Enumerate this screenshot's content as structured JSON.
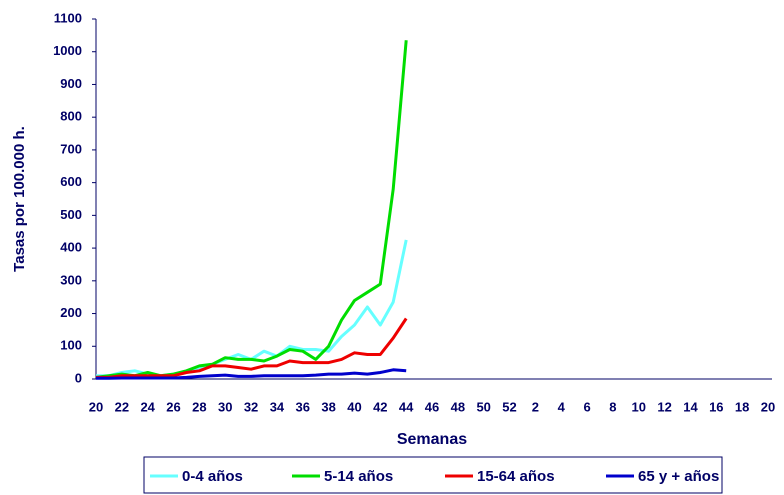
{
  "chart_data": {
    "type": "line",
    "y_label": "Tasas por 100.000 h.",
    "x_label": "Semanas",
    "categories": [
      "20",
      null,
      "22",
      null,
      "24",
      null,
      "26",
      null,
      "28",
      null,
      "30",
      null,
      "32",
      null,
      "34",
      null,
      "36",
      null,
      "38",
      null,
      "40",
      null,
      "42",
      null,
      "44",
      null,
      "46",
      null,
      "48",
      null,
      "50",
      null,
      "52",
      null,
      "2",
      null,
      "4",
      null,
      "6",
      null,
      "8",
      null,
      "10",
      null,
      "12",
      null,
      "14",
      null,
      "16",
      null,
      "18",
      null,
      "20"
    ],
    "ylim": [
      0,
      1100
    ],
    "yticks": [
      0,
      100,
      200,
      300,
      400,
      500,
      600,
      700,
      800,
      900,
      1000,
      1100
    ],
    "grid": false,
    "series": [
      {
        "name": "0-4 años",
        "color": "#66ffff",
        "values": [
          10,
          10,
          20,
          25,
          15,
          10,
          15,
          20,
          35,
          45,
          60,
          75,
          60,
          85,
          70,
          100,
          90,
          90,
          85,
          130,
          165,
          220,
          165,
          235,
          425,
          null,
          null,
          null,
          null,
          null,
          null,
          null,
          null,
          null,
          null,
          null,
          null,
          null,
          null,
          null,
          null,
          null,
          null,
          null,
          null,
          null,
          null,
          null,
          null,
          null,
          null,
          null,
          null
        ]
      },
      {
        "name": "5-14 años",
        "color": "#00dd00",
        "values": [
          5,
          10,
          15,
          10,
          20,
          10,
          15,
          25,
          40,
          45,
          65,
          60,
          60,
          55,
          70,
          90,
          85,
          60,
          100,
          180,
          240,
          265,
          290,
          580,
          1035,
          null,
          null,
          null,
          null,
          null,
          null,
          null,
          null,
          null,
          null,
          null,
          null,
          null,
          null,
          null,
          null,
          null,
          null,
          null,
          null,
          null,
          null,
          null,
          null,
          null,
          null,
          null,
          null
        ]
      },
      {
        "name": "15-64 años",
        "color": "#ee0000",
        "values": [
          5,
          5,
          10,
          10,
          10,
          10,
          10,
          20,
          25,
          40,
          40,
          35,
          30,
          40,
          40,
          55,
          50,
          50,
          50,
          60,
          80,
          75,
          75,
          125,
          185,
          null,
          null,
          null,
          null,
          null,
          null,
          null,
          null,
          null,
          null,
          null,
          null,
          null,
          null,
          null,
          null,
          null,
          null,
          null,
          null,
          null,
          null,
          null,
          null,
          null,
          null,
          null,
          null
        ]
      },
      {
        "name": "65 y + años",
        "color": "#0000cc",
        "values": [
          2,
          2,
          3,
          3,
          3,
          3,
          3,
          5,
          8,
          10,
          12,
          8,
          8,
          10,
          10,
          10,
          10,
          12,
          15,
          15,
          18,
          15,
          20,
          28,
          25,
          null,
          null,
          null,
          null,
          null,
          null,
          null,
          null,
          null,
          null,
          null,
          null,
          null,
          null,
          null,
          null,
          null,
          null,
          null,
          null,
          null,
          null,
          null,
          null,
          null,
          null,
          null,
          null
        ]
      }
    ]
  }
}
